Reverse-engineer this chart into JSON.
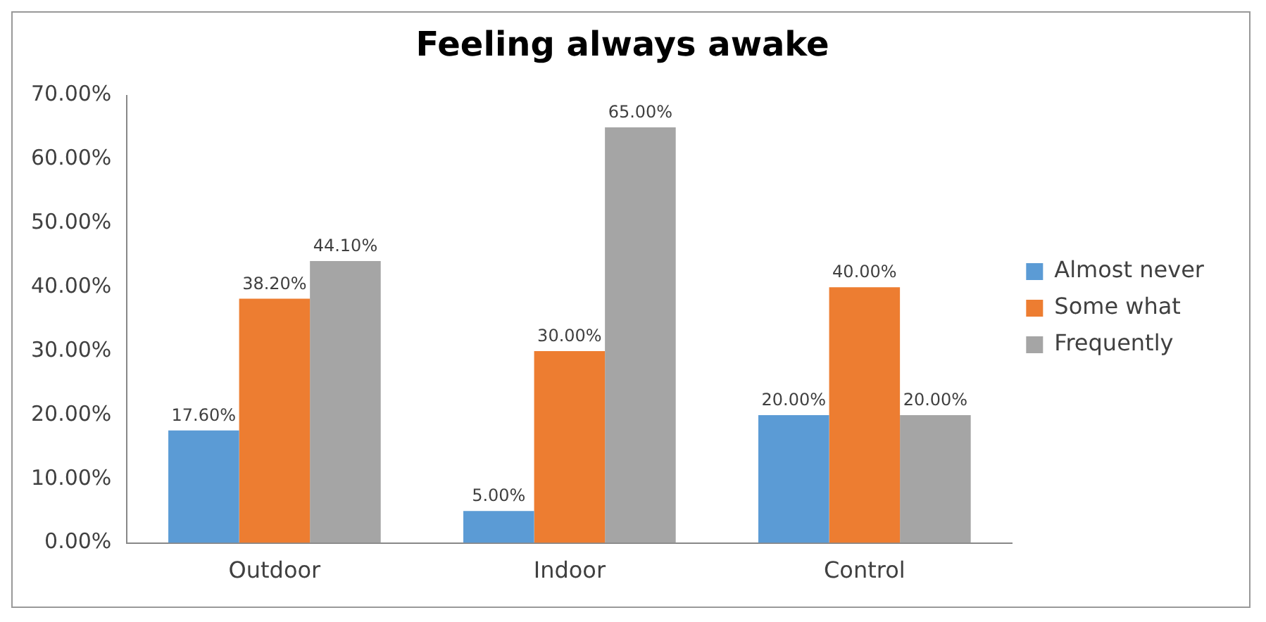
{
  "chart_data": {
    "type": "bar",
    "title": "Feeling always awake",
    "categories": [
      "Outdoor",
      "Indoor",
      "Control"
    ],
    "series": [
      {
        "name": "Almost never",
        "color": "#5b9bd5",
        "values": [
          17.6,
          5,
          20
        ],
        "value_labels": [
          "17.60%",
          "5.00%",
          "20.00%"
        ]
      },
      {
        "name": "Some what",
        "color": "#ed7d31",
        "values": [
          38.2,
          30,
          40
        ],
        "value_labels": [
          "38.20%",
          "30.00%",
          "40.00%"
        ]
      },
      {
        "name": "Frequently",
        "color": "#a5a5a5",
        "values": [
          44.1,
          65,
          20
        ],
        "value_labels": [
          "44.10%",
          "65.00%",
          "20.00%"
        ]
      }
    ],
    "ylim": [
      0,
      70
    ],
    "yticks": [
      {
        "value": 0,
        "label": "0.00%"
      },
      {
        "value": 10,
        "label": "10.00%"
      },
      {
        "value": 20,
        "label": "20.00%"
      },
      {
        "value": 30,
        "label": "30.00%"
      },
      {
        "value": 40,
        "label": "40.00%"
      },
      {
        "value": 50,
        "label": "50.00%"
      },
      {
        "value": 60,
        "label": "60.00%"
      },
      {
        "value": 70,
        "label": "70.00%"
      }
    ],
    "legend": "right",
    "grid": false
  }
}
